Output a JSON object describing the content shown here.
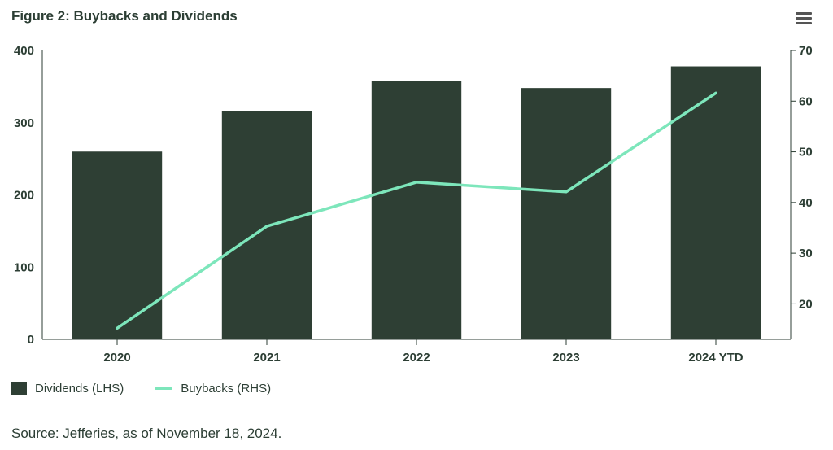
{
  "title": "Figure 2: Buybacks and Dividends",
  "menu": {
    "icon": "hamburger-menu-icon"
  },
  "colors": {
    "bar": "#2e3f34",
    "line": "#7de6bb",
    "text": "#2c3e34",
    "axis": "#2c3e34"
  },
  "chart_data": {
    "type": "bar",
    "title": "Figure 2: Buybacks and Dividends",
    "categories": [
      "2020",
      "2021",
      "2022",
      "2023",
      "2024 YTD"
    ],
    "series": [
      {
        "name": "Dividends (LHS)",
        "type": "bar",
        "axis": "left",
        "values": [
          260,
          316,
          358,
          348,
          378
        ]
      },
      {
        "name": "Buybacks (RHS)",
        "type": "line",
        "axis": "right",
        "values": [
          15.2,
          35.3,
          44.0,
          42.1,
          61.6
        ]
      }
    ],
    "y_left": {
      "ticks": [
        0,
        100,
        200,
        300,
        400
      ],
      "range": [
        0,
        400
      ]
    },
    "y_right": {
      "ticks": [
        20,
        30,
        40,
        50,
        60,
        70
      ],
      "range": [
        13,
        70
      ]
    },
    "grid": false,
    "legend_position": "bottom-left"
  },
  "legend": {
    "dividends_label": "Dividends (LHS)",
    "buybacks_label": "Buybacks (RHS)"
  },
  "source": "Source: Jefferies, as of November 18, 2024."
}
